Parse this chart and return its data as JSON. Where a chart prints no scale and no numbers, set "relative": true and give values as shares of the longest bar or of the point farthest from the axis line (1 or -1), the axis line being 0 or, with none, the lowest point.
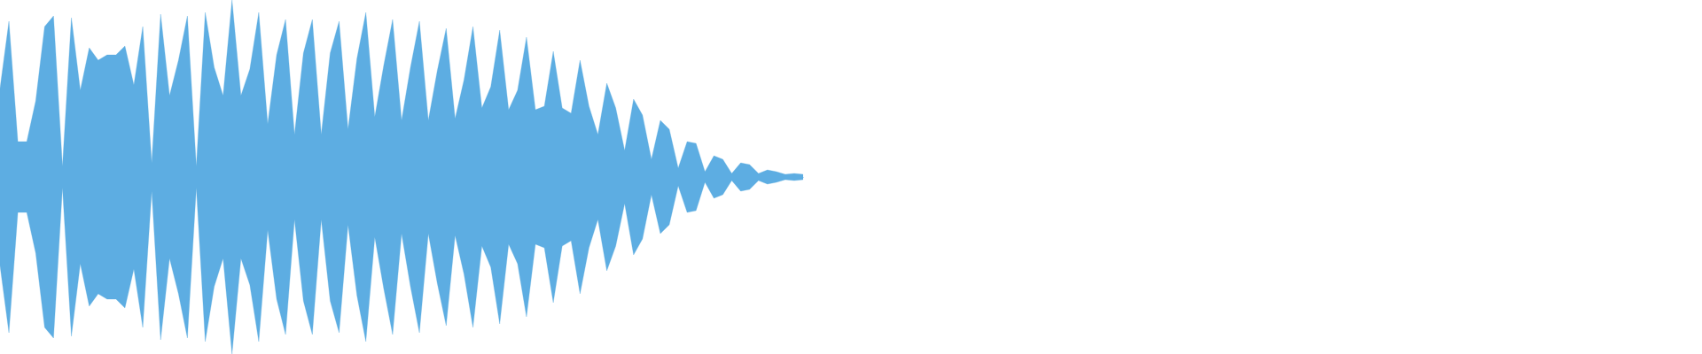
{
  "chart_data": {
    "type": "area",
    "relative": true,
    "categories": [
      null,
      null,
      null,
      null,
      null,
      null,
      null,
      null,
      null,
      null,
      null,
      null,
      null,
      null,
      null,
      null,
      null,
      null,
      null,
      null,
      null,
      null,
      null,
      null,
      null,
      null,
      null,
      null,
      null,
      null,
      null,
      null,
      null,
      null,
      null,
      null,
      null,
      null,
      null,
      null,
      null,
      null,
      null,
      null,
      null,
      null,
      null,
      null,
      null,
      null,
      null,
      null,
      null,
      null,
      null,
      null,
      null,
      null,
      null,
      null,
      null,
      null,
      null,
      null,
      null,
      null,
      null,
      null,
      null,
      null,
      null,
      null,
      null,
      null,
      null,
      null,
      null,
      null,
      null,
      null,
      null,
      null,
      null,
      null,
      null,
      null,
      null,
      null,
      null,
      null,
      null
    ],
    "series": [
      {
        "color": "#5dade2",
        "values": [
          0.5,
          0.88,
          0.2,
          0.2,
          0.43,
          0.85,
          0.91,
          0.06,
          0.9,
          0.49,
          0.73,
          0.66,
          0.69,
          0.69,
          0.74,
          0.52,
          0.85,
          0.08,
          0.92,
          0.46,
          0.66,
          0.91,
          0.06,
          0.93,
          0.62,
          0.46,
          1,
          0.46,
          0.61,
          0.93,
          0.3,
          0.69,
          0.89,
          0.24,
          0.7,
          0.89,
          0.24,
          0.7,
          0.88,
          0.27,
          0.67,
          0.93,
          0.34,
          0.63,
          0.89,
          0.32,
          0.62,
          0.88,
          0.32,
          0.6,
          0.84,
          0.33,
          0.55,
          0.85,
          0.39,
          0.51,
          0.83,
          0.38,
          0.49,
          0.79,
          0.38,
          0.4,
          0.71,
          0.39,
          0.36,
          0.66,
          0.4,
          0.24,
          0.53,
          0.39,
          0.15,
          0.44,
          0.35,
          0.1,
          0.32,
          0.27,
          0.05,
          0.2,
          0.19,
          0.03,
          0.12,
          0.1,
          0.02,
          0.08,
          0.07,
          0.02,
          0.04,
          0.03,
          0.015,
          0.02,
          0.015
        ]
      },
      {
        "color": "#5dade2",
        "values": [
          -0.5,
          -0.88,
          -0.2,
          -0.2,
          -0.43,
          -0.85,
          -0.91,
          -0.06,
          -0.9,
          -0.49,
          -0.73,
          -0.66,
          -0.69,
          -0.69,
          -0.74,
          -0.52,
          -0.85,
          -0.08,
          -0.92,
          -0.46,
          -0.66,
          -0.91,
          -0.06,
          -0.93,
          -0.62,
          -0.46,
          -1,
          -0.46,
          -0.61,
          -0.93,
          -0.3,
          -0.69,
          -0.89,
          -0.24,
          -0.7,
          -0.89,
          -0.24,
          -0.7,
          -0.88,
          -0.27,
          -0.67,
          -0.93,
          -0.34,
          -0.63,
          -0.89,
          -0.32,
          -0.62,
          -0.88,
          -0.32,
          -0.6,
          -0.84,
          -0.33,
          -0.55,
          -0.85,
          -0.39,
          -0.51,
          -0.83,
          -0.38,
          -0.49,
          -0.79,
          -0.38,
          -0.4,
          -0.71,
          -0.39,
          -0.36,
          -0.66,
          -0.4,
          -0.24,
          -0.53,
          -0.39,
          -0.15,
          -0.44,
          -0.35,
          -0.1,
          -0.32,
          -0.27,
          -0.05,
          -0.2,
          -0.19,
          -0.03,
          -0.12,
          -0.1,
          -0.02,
          -0.08,
          -0.07,
          -0.02,
          -0.04,
          -0.03,
          -0.015,
          -0.02,
          -0.015
        ]
      }
    ]
  }
}
